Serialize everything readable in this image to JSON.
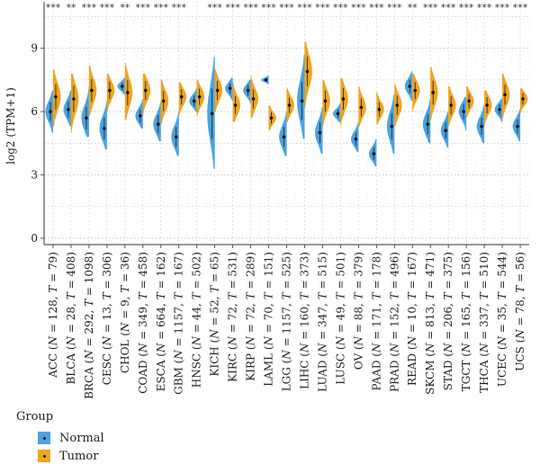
{
  "chart_data": {
    "type": "split-violin",
    "ylabel": "log2 (TPM+1)",
    "ylim": [
      -0.3,
      11.2
    ],
    "yticks": [
      0,
      3,
      6,
      9
    ],
    "grid": "dotted",
    "categories": [
      {
        "label": "ACC (N = 128, T = 79)",
        "sig": "***",
        "normal": {
          "median": 6.0,
          "min": 5.0,
          "max": 7.0
        },
        "tumor": {
          "median": 6.7,
          "min": 5.3,
          "max": 8.0
        }
      },
      {
        "label": "BLCA (N = 28, T = 408)",
        "sig": "**",
        "normal": {
          "median": 6.1,
          "min": 5.3,
          "max": 7.0
        },
        "tumor": {
          "median": 6.6,
          "min": 5.0,
          "max": 7.8
        }
      },
      {
        "label": "BRCA (N = 292, T = 1098)",
        "sig": "***",
        "normal": {
          "median": 5.7,
          "min": 4.8,
          "max": 7.2
        },
        "tumor": {
          "median": 7.0,
          "min": 5.8,
          "max": 8.2
        }
      },
      {
        "label": "CESC (N = 13, T = 306)",
        "sig": "***",
        "normal": {
          "median": 5.2,
          "min": 4.2,
          "max": 6.5
        },
        "tumor": {
          "median": 7.0,
          "min": 6.0,
          "max": 7.8
        }
      },
      {
        "label": "CHOL (N = 9, T = 36)",
        "sig": "**",
        "normal": {
          "median": 7.2,
          "min": 6.8,
          "max": 7.6
        },
        "tumor": {
          "median": 6.9,
          "min": 5.6,
          "max": 8.3
        }
      },
      {
        "label": "COAD (N = 349, T = 458)",
        "sig": "***",
        "normal": {
          "median": 5.8,
          "min": 5.2,
          "max": 6.6
        },
        "tumor": {
          "median": 7.0,
          "min": 5.8,
          "max": 7.8
        }
      },
      {
        "label": "ESCA (N = 664, T = 162)",
        "sig": "***",
        "normal": {
          "median": 5.4,
          "min": 4.6,
          "max": 6.5
        },
        "tumor": {
          "median": 6.5,
          "min": 5.4,
          "max": 7.5
        }
      },
      {
        "label": "GBM (N = 1157, T = 167)",
        "sig": "***",
        "normal": {
          "median": 4.8,
          "min": 3.9,
          "max": 6.0
        },
        "tumor": {
          "median": 6.7,
          "min": 5.8,
          "max": 7.4
        }
      },
      {
        "label": "HNSC (N = 44, T = 502)",
        "sig": "",
        "normal": {
          "median": 6.5,
          "min": 6.0,
          "max": 7.1
        },
        "tumor": {
          "median": 6.7,
          "min": 5.8,
          "max": 7.5
        }
      },
      {
        "label": "KICH (N = 52, T = 65)",
        "sig": "***",
        "normal": {
          "median": 5.9,
          "min": 3.3,
          "max": 8.6
        },
        "tumor": {
          "median": 7.0,
          "min": 6.0,
          "max": 8.0
        }
      },
      {
        "label": "KIRC (N = 72, T = 531)",
        "sig": "***",
        "normal": {
          "median": 7.1,
          "min": 6.5,
          "max": 7.6
        },
        "tumor": {
          "median": 6.3,
          "min": 5.5,
          "max": 7.4
        }
      },
      {
        "label": "KIRP (N = 72, T = 289)",
        "sig": "***",
        "normal": {
          "median": 7.0,
          "min": 6.4,
          "max": 7.5
        },
        "tumor": {
          "median": 6.6,
          "min": 5.7,
          "max": 7.7
        }
      },
      {
        "label": "LAML (N = 70, T = 151)",
        "sig": "***",
        "normal": {
          "median": 7.5,
          "min": 7.3,
          "max": 7.7
        },
        "tumor": {
          "median": 5.7,
          "min": 5.1,
          "max": 6.3
        }
      },
      {
        "label": "LGG (N = 1157, T = 525)",
        "sig": "***",
        "normal": {
          "median": 4.8,
          "min": 3.9,
          "max": 6.0
        },
        "tumor": {
          "median": 6.3,
          "min": 5.5,
          "max": 7.1
        }
      },
      {
        "label": "LIHC (N = 160, T = 373)",
        "sig": "***",
        "normal": {
          "median": 6.5,
          "min": 4.7,
          "max": 8.7
        },
        "tumor": {
          "median": 7.9,
          "min": 6.2,
          "max": 9.3
        }
      },
      {
        "label": "LUAD (N = 347, T = 515)",
        "sig": "***",
        "normal": {
          "median": 5.0,
          "min": 4.0,
          "max": 6.2
        },
        "tumor": {
          "median": 6.5,
          "min": 5.3,
          "max": 7.5
        }
      },
      {
        "label": "LUSC (N = 49, T = 501)",
        "sig": "***",
        "normal": {
          "median": 5.9,
          "min": 5.5,
          "max": 6.4
        },
        "tumor": {
          "median": 6.6,
          "min": 5.3,
          "max": 7.6
        }
      },
      {
        "label": "OV (N = 88, T = 379)",
        "sig": "***",
        "normal": {
          "median": 4.7,
          "min": 4.1,
          "max": 5.5
        },
        "tumor": {
          "median": 6.2,
          "min": 5.3,
          "max": 7.2
        }
      },
      {
        "label": "PAAD (N = 171, T = 178)",
        "sig": "***",
        "normal": {
          "median": 4.0,
          "min": 3.4,
          "max": 4.7
        },
        "tumor": {
          "median": 6.1,
          "min": 5.4,
          "max": 6.9
        }
      },
      {
        "label": "PRAD (N = 152, T = 496)",
        "sig": "***",
        "normal": {
          "median": 5.3,
          "min": 4.0,
          "max": 6.8
        },
        "tumor": {
          "median": 6.3,
          "min": 5.3,
          "max": 7.3
        }
      },
      {
        "label": "READ (N = 10, T = 167)",
        "sig": "**",
        "normal": {
          "median": 7.2,
          "min": 6.5,
          "max": 7.9
        },
        "tumor": {
          "median": 7.0,
          "min": 6.0,
          "max": 7.8
        }
      },
      {
        "label": "SKCM (N = 813, T = 471)",
        "sig": "***",
        "normal": {
          "median": 5.4,
          "min": 4.5,
          "max": 6.6
        },
        "tumor": {
          "median": 6.9,
          "min": 5.6,
          "max": 8.1
        }
      },
      {
        "label": "STAD (N = 206, T = 375)",
        "sig": "***",
        "normal": {
          "median": 5.1,
          "min": 4.3,
          "max": 6.0
        },
        "tumor": {
          "median": 6.3,
          "min": 5.3,
          "max": 7.2
        }
      },
      {
        "label": "TGCT (N = 165, T = 156)",
        "sig": "***",
        "normal": {
          "median": 6.0,
          "min": 5.1,
          "max": 6.7
        },
        "tumor": {
          "median": 6.5,
          "min": 5.7,
          "max": 7.2
        }
      },
      {
        "label": "THCA (N = 337, T = 510)",
        "sig": "***",
        "normal": {
          "median": 5.3,
          "min": 4.5,
          "max": 6.3
        },
        "tumor": {
          "median": 6.3,
          "min": 5.3,
          "max": 7.0
        }
      },
      {
        "label": "UCEC (N = 35, T = 544)",
        "sig": "***",
        "normal": {
          "median": 6.1,
          "min": 5.5,
          "max": 6.6
        },
        "tumor": {
          "median": 6.8,
          "min": 5.7,
          "max": 7.8
        }
      },
      {
        "label": "UCS (N = 78, T = 56)",
        "sig": "***",
        "normal": {
          "median": 5.3,
          "min": 4.6,
          "max": 6.1
        },
        "tumor": {
          "median": 6.6,
          "min": 5.9,
          "max": 7.1
        }
      }
    ],
    "legend": {
      "title": "Group",
      "position": "bottom-left",
      "entries": [
        {
          "name": "Normal",
          "color": "#4aa3df"
        },
        {
          "name": "Tumor",
          "color": "#f0a420"
        }
      ]
    }
  }
}
